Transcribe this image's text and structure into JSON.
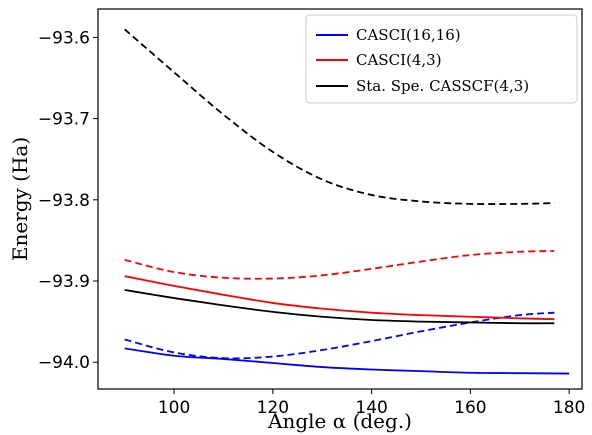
{
  "chart_data": {
    "type": "line",
    "xlabel": "Angle α (deg.)",
    "ylabel": "Energy (Ha)",
    "xlim": [
      84.6,
      182.6
    ],
    "ylim": [
      -94.033,
      -93.565
    ],
    "xticks": [
      100,
      120,
      140,
      160,
      180
    ],
    "xtick_labels": [
      "100",
      "120",
      "140",
      "160",
      "180"
    ],
    "yticks": [
      -94.0,
      -93.9,
      -93.8,
      -93.7,
      -93.6
    ],
    "ytick_labels": [
      "−94.0",
      "−93.9",
      "−93.8",
      "−93.7",
      "−93.6"
    ],
    "grid": false,
    "legend_position": "top-right",
    "legend": [
      {
        "label": "CASCI(16,16)",
        "color": "#0000ff"
      },
      {
        "label": "CASCI(4,3)",
        "color": "#ff0000"
      },
      {
        "label": "Sta. Spe. CASSCF(4,3)",
        "color": "#000000"
      }
    ],
    "series": [
      {
        "color": "#0000ff",
        "style": "solid",
        "x": [
          90,
          100,
          110,
          120,
          130,
          140,
          150,
          160,
          170,
          180
        ],
        "y": [
          -93.983,
          -93.992,
          -93.996,
          -94.001,
          -94.006,
          -94.009,
          -94.011,
          -94.013,
          -94.0135,
          -94.014
        ]
      },
      {
        "color": "#0000ff",
        "style": "dashed",
        "x": [
          90,
          100,
          110,
          120,
          130,
          140,
          150,
          160,
          170,
          177
        ],
        "y": [
          -93.972,
          -93.988,
          -93.995,
          -93.993,
          -93.985,
          -93.974,
          -93.962,
          -93.951,
          -93.942,
          -93.939
        ]
      },
      {
        "color": "#ff0000",
        "style": "solid",
        "x": [
          90,
          100,
          110,
          120,
          130,
          140,
          150,
          160,
          170,
          177
        ],
        "y": [
          -93.894,
          -93.906,
          -93.917,
          -93.927,
          -93.934,
          -93.939,
          -93.942,
          -93.944,
          -93.946,
          -93.947
        ]
      },
      {
        "color": "#ff0000",
        "style": "dashed",
        "x": [
          90,
          100,
          110,
          120,
          130,
          140,
          150,
          160,
          170,
          177
        ],
        "y": [
          -93.874,
          -93.889,
          -93.896,
          -93.897,
          -93.893,
          -93.885,
          -93.876,
          -93.868,
          -93.864,
          -93.863
        ]
      },
      {
        "color": "#000000",
        "style": "solid",
        "x": [
          90,
          100,
          110,
          120,
          130,
          140,
          150,
          160,
          170,
          177
        ],
        "y": [
          -93.911,
          -93.921,
          -93.93,
          -93.938,
          -93.944,
          -93.948,
          -93.95,
          -93.951,
          -93.952,
          -93.952
        ]
      },
      {
        "color": "#000000",
        "style": "dashed",
        "x": [
          90,
          100,
          110,
          120,
          130,
          140,
          150,
          160,
          170,
          177
        ],
        "y": [
          -93.59,
          -93.643,
          -93.695,
          -93.741,
          -93.775,
          -93.794,
          -93.802,
          -93.805,
          -93.805,
          -93.804
        ]
      }
    ]
  }
}
